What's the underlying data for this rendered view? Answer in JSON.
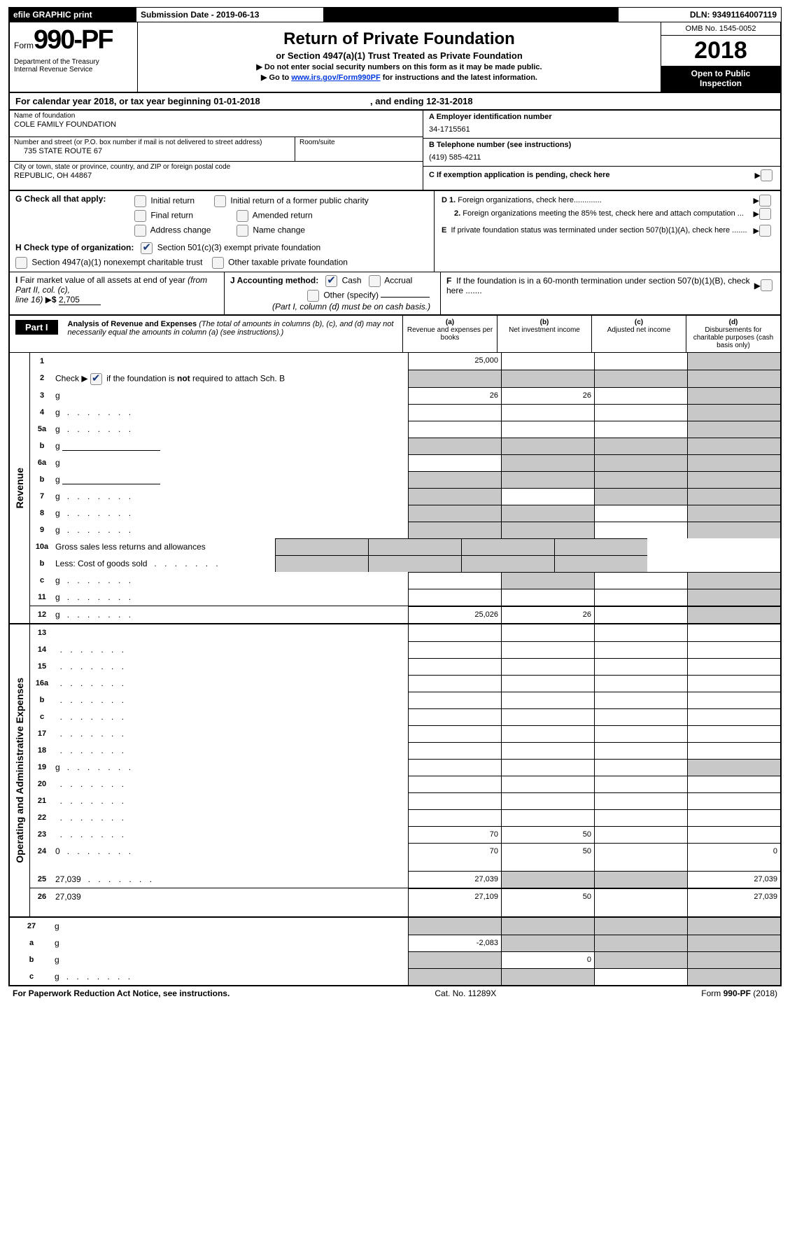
{
  "colors": {
    "black": "#000000",
    "white": "#ffffff",
    "grey_fill": "#c8c8c8",
    "checkbox_bg": "#f4f4f4",
    "link": "#0038e0"
  },
  "top": {
    "efile": "efile GRAPHIC print",
    "submission": "Submission Date - 2019-06-13",
    "dln": "DLN: 93491164007119"
  },
  "head": {
    "form_prefix": "Form",
    "form_no": "990-PF",
    "dept": "Department of the Treasury\nInternal Revenue Service",
    "title": "Return of Private Foundation",
    "subtitle": "or Section 4947(a)(1) Trust Treated as Private Foundation",
    "warn": "▶ Do not enter social security numbers on this form as it may be made public.",
    "goto_pre": "▶ Go to ",
    "goto_link": "www.irs.gov/Form990PF",
    "goto_post": " for instructions and the latest information.",
    "omb": "OMB No. 1545-0052",
    "year": "2018",
    "open": "Open to Public\nInspection"
  },
  "cal": {
    "pre": "For calendar year 2018, or tax year beginning 01-01-2018",
    "mid": ", and ending 12-31-2018"
  },
  "info": {
    "name_lbl": "Name of foundation",
    "name": "COLE FAMILY FOUNDATION",
    "addr_lbl": "Number and street (or P.O. box number if mail is not delivered to street address)",
    "addr": "735 STATE ROUTE 67",
    "room_lbl": "Room/suite",
    "city_lbl": "City or town, state or province, country, and ZIP or foreign postal code",
    "city": "REPUBLIC, OH  44867",
    "a_lbl": "A Employer identification number",
    "a_val": "34-1715561",
    "b_lbl": "B Telephone number (see instructions)",
    "b_val": "(419) 585-4211",
    "c_lbl": "C  If exemption application is pending, check here",
    "d1": "D 1. Foreign organizations, check here.............",
    "d2": "2. Foreign organizations meeting the 85% test, check here and attach computation ...",
    "e": "E  If private foundation status was terminated under section 507(b)(1)(A), check here .......",
    "f": "F  If the foundation is in a 60-month termination under section 507(b)(1)(B), check here ......."
  },
  "g": {
    "label": "G Check all that apply:",
    "opts": [
      "Initial return",
      "Initial return of a former public charity",
      "Final return",
      "Amended return",
      "Address change",
      "Name change"
    ]
  },
  "h": {
    "label": "H Check type of organization:",
    "o1": "Section 501(c)(3) exempt private foundation",
    "o2": "Section 4947(a)(1) nonexempt charitable trust",
    "o3": "Other taxable private foundation"
  },
  "i": {
    "label": "I Fair market value of all assets at end of year (from Part II, col. (c),",
    "line": "line 16) ▶$ ",
    "val": "2,705"
  },
  "j": {
    "label": "J Accounting method:",
    "o1": "Cash",
    "o2": "Accrual",
    "o3": "Other (specify)",
    "note": "(Part I, column (d) must be on cash basis.)"
  },
  "part1": {
    "tag": "Part I",
    "title": "Analysis of Revenue and Expenses",
    "note": "(The total of amounts in columns (b), (c), and (d) may not necessarily equal the amounts in column (a) (see instructions).)",
    "cols": {
      "a": "(a)",
      "a_txt": "Revenue and expenses per books",
      "b": "(b)",
      "b_txt": "Net investment income",
      "c": "(c)",
      "c_txt": "Adjusted net income",
      "d": "(d)",
      "d_txt": "Disbursements for charitable purposes (cash basis only)"
    }
  },
  "sidebars": {
    "rev": "Revenue",
    "exp": "Operating and Administrative Expenses"
  },
  "revenue_rows": [
    {
      "n": "1",
      "d": "",
      "a": "25,000",
      "b": "",
      "c": "",
      "dgrey": true
    },
    {
      "n": "2",
      "d": "g",
      "a": "g",
      "b": "g",
      "c": "g"
    },
    {
      "n": "3",
      "d": "g",
      "a": "26",
      "b": "26",
      "c": ""
    },
    {
      "n": "4",
      "d": "g",
      "dots": true,
      "a": "",
      "b": "",
      "c": ""
    },
    {
      "n": "5a",
      "d": "g",
      "dots": true,
      "a": "",
      "b": "",
      "c": ""
    },
    {
      "n": "b",
      "d": "g",
      "under": true,
      "a": "g",
      "b": "g",
      "c": "g"
    },
    {
      "n": "6a",
      "d": "g",
      "a": "",
      "b": "g",
      "c": "g"
    },
    {
      "n": "b",
      "d": "g",
      "under": true,
      "a": "g",
      "b": "g",
      "c": "g"
    },
    {
      "n": "7",
      "d": "g",
      "dots": true,
      "a": "g",
      "b": "",
      "c": "g"
    },
    {
      "n": "8",
      "d": "g",
      "dots": true,
      "a": "g",
      "b": "g",
      "c": ""
    },
    {
      "n": "9",
      "d": "g",
      "dots": true,
      "a": "g",
      "b": "g",
      "c": ""
    },
    {
      "n": "10a",
      "d": "Gross sales less returns and allowances",
      "half": true
    },
    {
      "n": "b",
      "d": "Less: Cost of goods sold",
      "dots": true,
      "half": true
    },
    {
      "n": "c",
      "d": "g",
      "dots": true,
      "a": "",
      "b": "g",
      "c": ""
    },
    {
      "n": "11",
      "d": "g",
      "dots": true,
      "a": "",
      "b": "",
      "c": ""
    },
    {
      "n": "12",
      "d": "g",
      "dots": true,
      "a": "25,026",
      "b": "26",
      "c": ""
    }
  ],
  "expense_rows": [
    {
      "n": "13",
      "d": "",
      "a": "",
      "b": "",
      "c": ""
    },
    {
      "n": "14",
      "d": "",
      "dots": true,
      "a": "",
      "b": "",
      "c": ""
    },
    {
      "n": "15",
      "d": "",
      "dots": true,
      "a": "",
      "b": "",
      "c": ""
    },
    {
      "n": "16a",
      "d": "",
      "dots": true,
      "a": "",
      "b": "",
      "c": ""
    },
    {
      "n": "b",
      "d": "",
      "dots": true,
      "a": "",
      "b": "",
      "c": ""
    },
    {
      "n": "c",
      "d": "",
      "dots": true,
      "a": "",
      "b": "",
      "c": ""
    },
    {
      "n": "17",
      "d": "",
      "dots": true,
      "a": "",
      "b": "",
      "c": ""
    },
    {
      "n": "18",
      "d": "",
      "dots": true,
      "a": "",
      "b": "",
      "c": ""
    },
    {
      "n": "19",
      "d": "g",
      "dots": true,
      "a": "",
      "b": "",
      "c": ""
    },
    {
      "n": "20",
      "d": "",
      "dots": true,
      "a": "",
      "b": "",
      "c": ""
    },
    {
      "n": "21",
      "d": "",
      "dots": true,
      "a": "",
      "b": "",
      "c": ""
    },
    {
      "n": "22",
      "d": "",
      "dots": true,
      "a": "",
      "b": "",
      "c": ""
    },
    {
      "n": "23",
      "d": "",
      "dots": true,
      "a": "70",
      "b": "50",
      "c": ""
    },
    {
      "n": "24",
      "d": "0",
      "dots": true,
      "a": "70",
      "b": "50",
      "c": "",
      "tall": true
    },
    {
      "n": "25",
      "d": "27,039",
      "dots": true,
      "a": "27,039",
      "b": "g",
      "c": "g"
    },
    {
      "n": "26",
      "d": "27,039",
      "a": "27,109",
      "b": "50",
      "c": "",
      "tall": true
    }
  ],
  "final_rows": [
    {
      "n": "27",
      "d": "g",
      "a": "g",
      "b": "g",
      "c": "g"
    },
    {
      "n": "a",
      "d": "g",
      "a": "-2,083",
      "b": "g",
      "c": "g"
    },
    {
      "n": "b",
      "d": "g",
      "a": "g",
      "b": "0",
      "c": "g"
    },
    {
      "n": "c",
      "d": "g",
      "dots": true,
      "a": "g",
      "b": "g",
      "c": ""
    }
  ],
  "footer": {
    "left": "For Paperwork Reduction Act Notice, see instructions.",
    "mid": "Cat. No. 11289X",
    "right": "Form 990-PF (2018)"
  }
}
